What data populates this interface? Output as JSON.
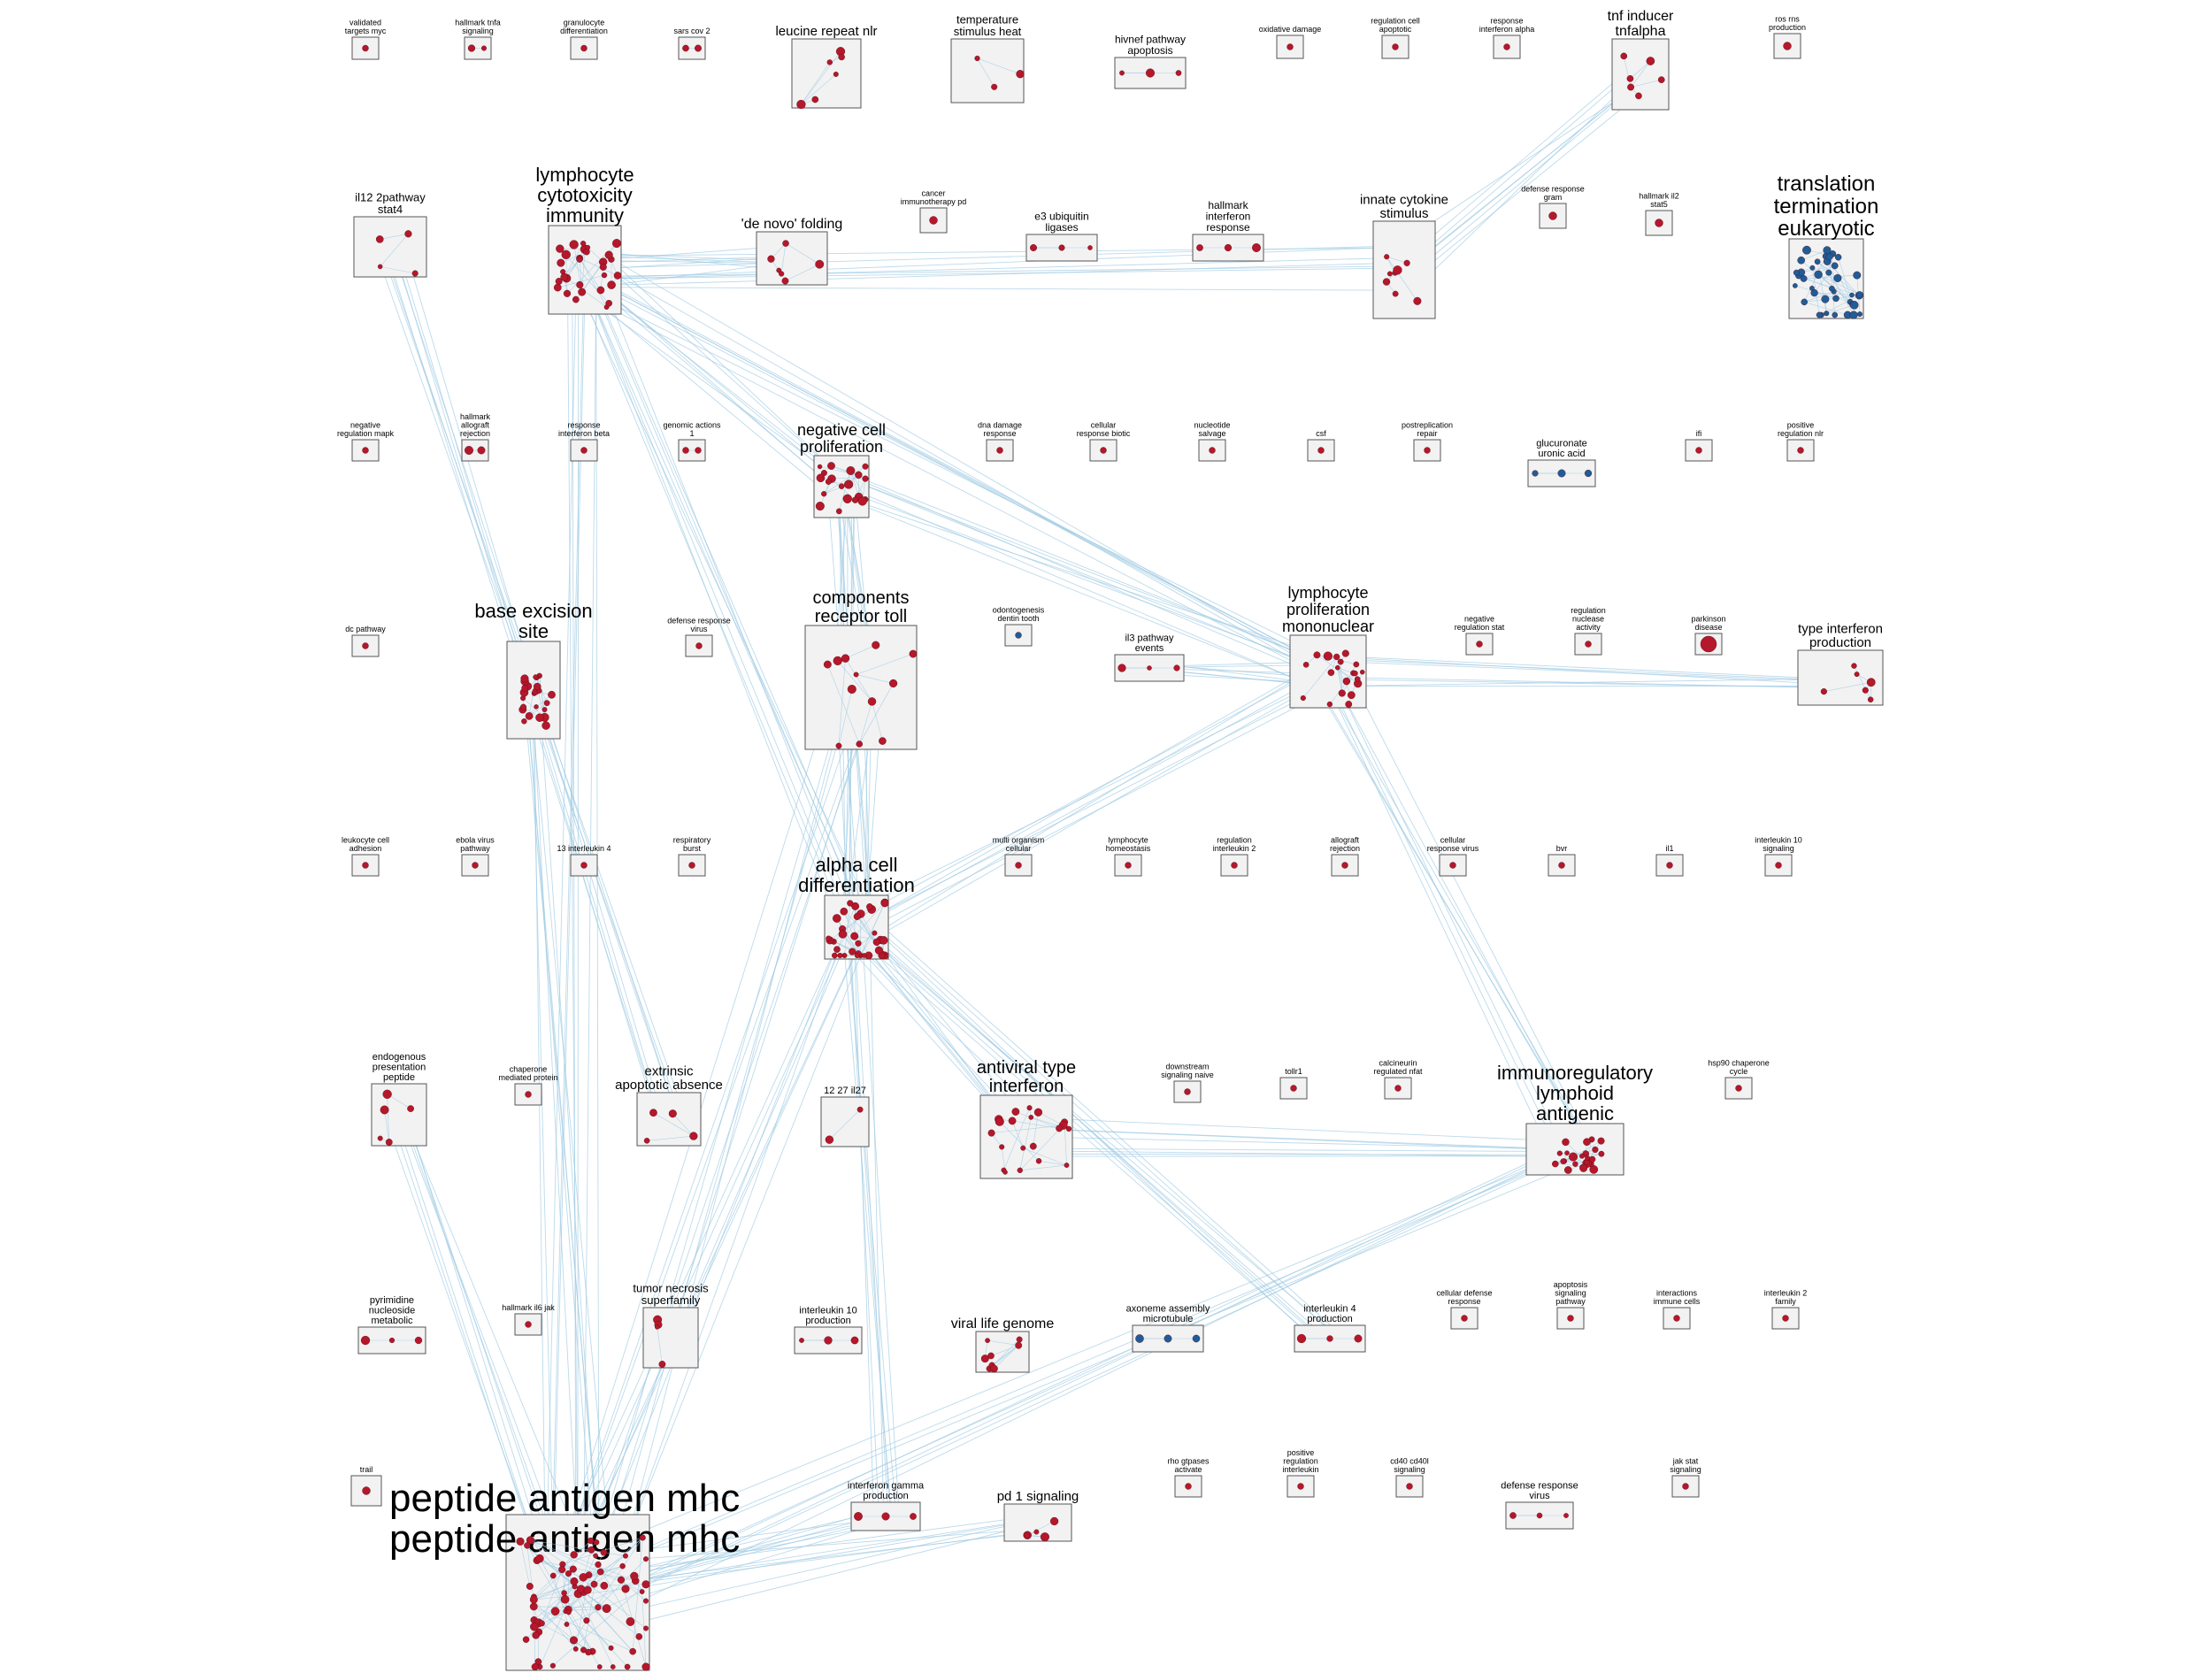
{
  "diagram": {
    "colors": {
      "upregulated": "#b5172b",
      "downregulated": "#1f5d99",
      "edge": "#9fcbe3",
      "box_fill": "#f2f2f2"
    },
    "clusters": [
      {
        "label": "validated targets myc",
        "nodes": 1,
        "color": "red"
      },
      {
        "label": "hallmark tnfa signaling",
        "nodes": 2,
        "color": "red"
      },
      {
        "label": "granulocyte differentiation",
        "nodes": 1,
        "color": "red"
      },
      {
        "label": "sars cov 2",
        "nodes": 2,
        "color": "red"
      },
      {
        "label": "leucine repeat nlr",
        "nodes": 6,
        "color": "red"
      },
      {
        "label": "temperature stimulus heat",
        "nodes": 3,
        "color": "red"
      },
      {
        "label": "hivnef pathway apoptosis",
        "nodes": 3,
        "color": "red"
      },
      {
        "label": "oxidative damage",
        "nodes": 1,
        "color": "red"
      },
      {
        "label": "regulation cell apoptotic",
        "nodes": 1,
        "color": "red"
      },
      {
        "label": "response interferon alpha",
        "nodes": 1,
        "color": "red"
      },
      {
        "label": "tnf inducer tnfalpha",
        "nodes": 6,
        "color": "red"
      },
      {
        "label": "ros rns production",
        "nodes": 1,
        "color": "red"
      },
      {
        "label": "il12 2pathway stat4",
        "nodes": 4,
        "color": "red"
      },
      {
        "label": "lymphocyte cytotoxicity immunity",
        "nodes": 30,
        "color": "red"
      },
      {
        "label": "'de novo' folding",
        "nodes": 6,
        "color": "red"
      },
      {
        "label": "cancer immunotherapy pd",
        "nodes": 1,
        "color": "red"
      },
      {
        "label": "e3 ubiquitin ligases",
        "nodes": 3,
        "color": "red"
      },
      {
        "label": "hallmark interferon response",
        "nodes": 3,
        "color": "red"
      },
      {
        "label": "innate cytokine stimulus",
        "nodes": 8,
        "color": "red"
      },
      {
        "label": "defense response gram",
        "nodes": 1,
        "color": "red"
      },
      {
        "label": "hallmark il2 stat5",
        "nodes": 1,
        "color": "red"
      },
      {
        "label": "translation termination eukaryotic",
        "nodes": 40,
        "color": "blue"
      },
      {
        "label": "negative regulation mapk",
        "nodes": 1,
        "color": "red"
      },
      {
        "label": "hallmark allograft rejection",
        "nodes": 2,
        "color": "red"
      },
      {
        "label": "response interferon beta",
        "nodes": 1,
        "color": "red"
      },
      {
        "label": "genomic actions 1",
        "nodes": 2,
        "color": "red"
      },
      {
        "label": "negative cell proliferation",
        "nodes": 20,
        "color": "red"
      },
      {
        "label": "dna damage response",
        "nodes": 1,
        "color": "red"
      },
      {
        "label": "cellular response biotic",
        "nodes": 1,
        "color": "red"
      },
      {
        "label": "nucleotide salvage",
        "nodes": 1,
        "color": "red"
      },
      {
        "label": "csf",
        "nodes": 1,
        "color": "red"
      },
      {
        "label": "postreplication repair",
        "nodes": 1,
        "color": "red"
      },
      {
        "label": "glucuronate uronic acid",
        "nodes": 3,
        "color": "blue"
      },
      {
        "label": "ifi",
        "nodes": 1,
        "color": "red"
      },
      {
        "label": "positive regulation nlr",
        "nodes": 1,
        "color": "red"
      },
      {
        "label": "dc pathway",
        "nodes": 1,
        "color": "red"
      },
      {
        "label": "base excision site",
        "nodes": 25,
        "color": "red"
      },
      {
        "label": "defense response virus",
        "nodes": 1,
        "color": "red"
      },
      {
        "label": "components receptor toll",
        "nodes": 12,
        "color": "red"
      },
      {
        "label": "odontogenesis dentin tooth",
        "nodes": 1,
        "color": "blue"
      },
      {
        "label": "il3 pathway events",
        "nodes": 3,
        "color": "red"
      },
      {
        "label": "lymphocyte proliferation mononuclear",
        "nodes": 20,
        "color": "red"
      },
      {
        "label": "negative regulation stat",
        "nodes": 1,
        "color": "red"
      },
      {
        "label": "regulation nuclease activity",
        "nodes": 1,
        "color": "red"
      },
      {
        "label": "parkinson disease",
        "nodes": 1,
        "color": "red"
      },
      {
        "label": "type interferon production",
        "nodes": 6,
        "color": "red"
      },
      {
        "label": "leukocyte cell adhesion",
        "nodes": 1,
        "color": "red"
      },
      {
        "label": "ebola virus pathway",
        "nodes": 1,
        "color": "red"
      },
      {
        "label": "13 interleukin 4",
        "nodes": 1,
        "color": "red"
      },
      {
        "label": "respiratory burst",
        "nodes": 1,
        "color": "red"
      },
      {
        "label": "alpha cell differentiation",
        "nodes": 35,
        "color": "red"
      },
      {
        "label": "multi organism cellular",
        "nodes": 1,
        "color": "red"
      },
      {
        "label": "lymphocyte homeostasis",
        "nodes": 1,
        "color": "red"
      },
      {
        "label": "regulation interleukin 2",
        "nodes": 1,
        "color": "red"
      },
      {
        "label": "allograft rejection",
        "nodes": 1,
        "color": "red"
      },
      {
        "label": "cellular response virus",
        "nodes": 1,
        "color": "red"
      },
      {
        "label": "bvr",
        "nodes": 1,
        "color": "red"
      },
      {
        "label": "il1",
        "nodes": 1,
        "color": "red"
      },
      {
        "label": "interleukin 10 signaling",
        "nodes": 1,
        "color": "red"
      },
      {
        "label": "endogenous presentation peptide",
        "nodes": 5,
        "color": "red"
      },
      {
        "label": "chaperone mediated protein",
        "nodes": 1,
        "color": "red"
      },
      {
        "label": "extrinsic apoptotic absence",
        "nodes": 4,
        "color": "red"
      },
      {
        "label": "12 27 il27",
        "nodes": 2,
        "color": "red"
      },
      {
        "label": "antiviral type interferon",
        "nodes": 20,
        "color": "red"
      },
      {
        "label": "downstream signaling naive",
        "nodes": 1,
        "color": "red"
      },
      {
        "label": "tollr1",
        "nodes": 1,
        "color": "red"
      },
      {
        "label": "calcineurin regulated nfat",
        "nodes": 1,
        "color": "red"
      },
      {
        "label": "immunoregulatory lymphoid antigenic",
        "nodes": 25,
        "color": "red"
      },
      {
        "label": "hsp90 chaperone cycle",
        "nodes": 1,
        "color": "red"
      },
      {
        "label": "pyrimidine nucleoside metabolic",
        "nodes": 3,
        "color": "red"
      },
      {
        "label": "hallmark il6 jak",
        "nodes": 1,
        "color": "red"
      },
      {
        "label": "tumor necrosis superfamily",
        "nodes": 4,
        "color": "red"
      },
      {
        "label": "interleukin 10 production",
        "nodes": 3,
        "color": "red"
      },
      {
        "label": "viral life genome",
        "nodes": 8,
        "color": "red"
      },
      {
        "label": "axoneme assembly microtubule",
        "nodes": 3,
        "color": "blue"
      },
      {
        "label": "interleukin 4 production",
        "nodes": 3,
        "color": "red"
      },
      {
        "label": "cellular defense response",
        "nodes": 1,
        "color": "red"
      },
      {
        "label": "apoptosis signaling pathway",
        "nodes": 1,
        "color": "red"
      },
      {
        "label": "interactions immune cells",
        "nodes": 1,
        "color": "red"
      },
      {
        "label": "interleukin 2 family",
        "nodes": 1,
        "color": "red"
      },
      {
        "label": "trail",
        "nodes": 1,
        "color": "red"
      },
      {
        "label": "peptide antigen mhc",
        "nodes": 80,
        "color": "red"
      },
      {
        "label": "interferon gamma production",
        "nodes": 3,
        "color": "red"
      },
      {
        "label": "pd 1 signaling",
        "nodes": 5,
        "color": "red"
      },
      {
        "label": "rho gtpases activate",
        "nodes": 1,
        "color": "red"
      },
      {
        "label": "positive regulation interleukin",
        "nodes": 1,
        "color": "red"
      },
      {
        "label": "cd40 cd40l signaling",
        "nodes": 1,
        "color": "red"
      },
      {
        "label": "defense response virus",
        "nodes": 3,
        "color": "red"
      },
      {
        "label": "jak stat signaling",
        "nodes": 1,
        "color": "red"
      }
    ],
    "connections": [
      [
        "lymphocyte cytotoxicity immunity",
        "alpha cell differentiation"
      ],
      [
        "lymphocyte cytotoxicity immunity",
        "negative cell proliferation"
      ],
      [
        "lymphocyte cytotoxicity immunity",
        "innate cytokine stimulus"
      ],
      [
        "lymphocyte cytotoxicity immunity",
        "'de novo' folding"
      ],
      [
        "lymphocyte cytotoxicity immunity",
        "peptide antigen mhc"
      ],
      [
        "lymphocyte cytotoxicity immunity",
        "lymphocyte proliferation mononuclear"
      ],
      [
        "negative cell proliferation",
        "lymphocyte proliferation mononuclear"
      ],
      [
        "negative cell proliferation",
        "alpha cell differentiation"
      ],
      [
        "negative cell proliferation",
        "components receptor toll"
      ],
      [
        "components receptor toll",
        "alpha cell differentiation"
      ],
      [
        "alpha cell differentiation",
        "lymphocyte proliferation mononuclear"
      ],
      [
        "base excision site",
        "peptide antigen mhc"
      ],
      [
        "alpha cell differentiation",
        "peptide antigen mhc"
      ],
      [
        "components receptor toll",
        "peptide antigen mhc"
      ],
      [
        "immunoregulatory lymphoid antigenic",
        "peptide antigen mhc"
      ],
      [
        "lymphocyte proliferation mononuclear",
        "immunoregulatory lymphoid antigenic"
      ],
      [
        "endogenous presentation peptide",
        "peptide antigen mhc"
      ],
      [
        "pd 1 signaling",
        "peptide antigen mhc"
      ],
      [
        "interferon gamma production",
        "peptide antigen mhc"
      ],
      [
        "antiviral type interferon",
        "alpha cell differentiation"
      ],
      [
        "antiviral type interferon",
        "immunoregulatory lymphoid antigenic"
      ],
      [
        "alpha cell differentiation",
        "interleukin 4 production"
      ],
      [
        "lymphocyte proliferation mononuclear",
        "type interferon production"
      ],
      [
        "lymphocyte proliferation mononuclear",
        "il3 pathway events"
      ],
      [
        "innate cytokine stimulus",
        "tnf inducer tnfalpha"
      ],
      [
        "il12 2pathway stat4",
        "extrinsic apoptotic absence"
      ],
      [
        "alpha cell differentiation",
        "interferon gamma production"
      ]
    ]
  }
}
